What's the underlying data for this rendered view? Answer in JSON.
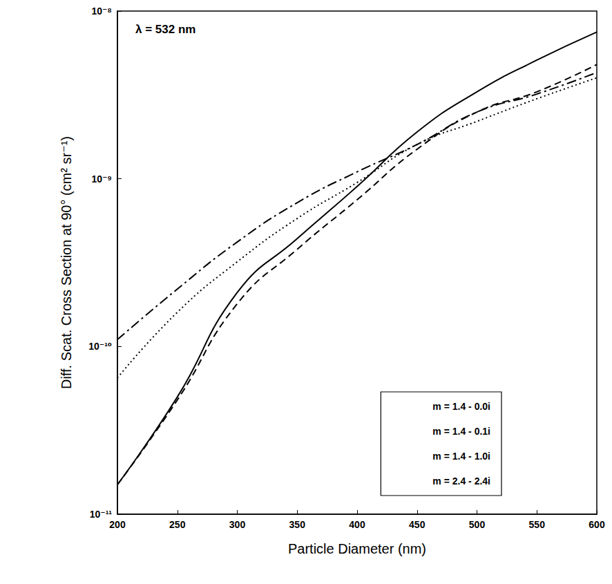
{
  "chart_data": {
    "type": "line",
    "annotation": "λ = 532 nm",
    "x_label": "Particle Diameter (nm)",
    "y_label": "Diff. Scat. Cross Section at 90° (cm² sr⁻¹)",
    "x": [
      200,
      250,
      300,
      350,
      400,
      450,
      500,
      550,
      600
    ],
    "series": [
      {
        "name": "m = 1.4 - 0.0i",
        "color": "#000000",
        "line_style": "solid",
        "values": [
          1.5e-11,
          5e-11,
          2.1e-10,
          4.4e-10,
          9e-10,
          1.9e-09,
          3.3e-09,
          5.1e-09,
          7.5e-09
        ]
      },
      {
        "name": "m = 1.4 - 0.1i",
        "color": "#000000",
        "line_style": "dashed",
        "values": [
          1.5e-11,
          4.8e-11,
          1.8e-10,
          3.8e-10,
          7.5e-10,
          1.5e-09,
          2.5e-09,
          3.3e-09,
          4.8e-09
        ]
      },
      {
        "name": "m = 1.4 - 1.0i",
        "color": "#000000",
        "line_style": "dotted",
        "values": [
          6.5e-11,
          1.6e-10,
          3.2e-10,
          5.8e-10,
          9.5e-10,
          1.6e-09,
          2.2e-09,
          3e-09,
          4e-09
        ]
      },
      {
        "name": "m = 2.4 - 2.4i",
        "color": "#000000",
        "line_style": "dashdot",
        "values": [
          1.1e-10,
          2.2e-10,
          4.2e-10,
          7.2e-10,
          1.1e-09,
          1.6e-09,
          2.5e-09,
          3.2e-09,
          4.3e-09
        ]
      }
    ],
    "xlim": [
      200,
      600
    ],
    "xticks": [
      200,
      250,
      300,
      350,
      400,
      450,
      500,
      550,
      600
    ],
    "ylim": [
      1e-11,
      1e-08
    ],
    "yticks": [
      {
        "value": 1e-11,
        "label": "10⁻¹¹"
      },
      {
        "value": 1e-10,
        "label": "10⁻¹⁰"
      },
      {
        "value": 1e-09,
        "label": "10⁻⁹"
      },
      {
        "value": 1e-08,
        "label": "10⁻⁸"
      }
    ],
    "log": "y",
    "grid": false,
    "legend": "lower right"
  }
}
